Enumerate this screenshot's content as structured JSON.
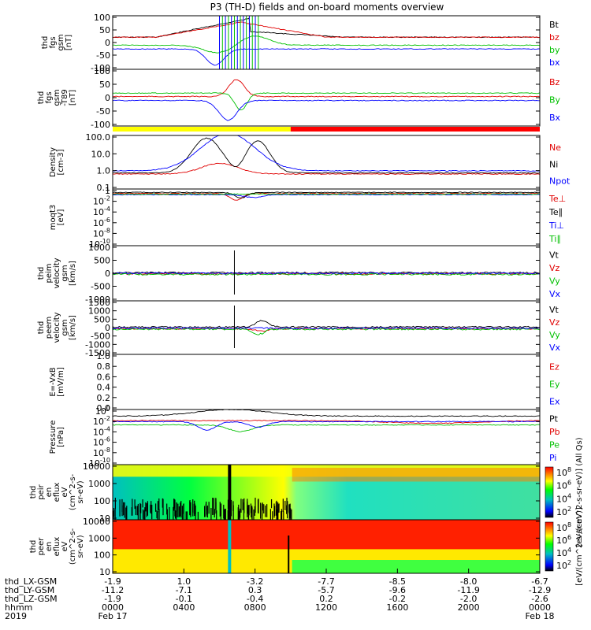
{
  "chart_data": {
    "type": "line",
    "title": "P3 (TH-D) fields and on-board moments overview",
    "panels": [
      {
        "id": "fgs",
        "ylabel": [
          "thd",
          "fgs",
          "gsm",
          "[nT]"
        ],
        "yticks": [
          "100",
          "50",
          "0",
          "-50",
          "-100"
        ],
        "ylim": [
          -100,
          100
        ],
        "scale": "linear",
        "series": [
          {
            "name": "Bt",
            "color": "#000000"
          },
          {
            "name": "bz",
            "color": "#e00000"
          },
          {
            "name": "by",
            "color": "#00c000"
          },
          {
            "name": "bx",
            "color": "#0000ff"
          }
        ]
      },
      {
        "id": "fgs-dt",
        "ylabel": [
          "thd",
          "fgs",
          "gsm",
          "-T89",
          "[nT]"
        ],
        "yticks": [
          "100",
          "50",
          "0",
          "-50",
          "-100"
        ],
        "ylim": [
          -120,
          110
        ],
        "scale": "linear",
        "series": [
          {
            "name": "Bz",
            "color": "#e00000"
          },
          {
            "name": "By",
            "color": "#00c000"
          },
          {
            "name": "Bx",
            "color": "#0000ff"
          }
        ]
      },
      {
        "id": "density",
        "ylabel": [
          "Density",
          "[cm-3]"
        ],
        "yticks": [
          "100.0",
          "10.0",
          "1.0",
          "0.1"
        ],
        "ylim": [
          0.1,
          200
        ],
        "scale": "log",
        "series": [
          {
            "name": "Ne",
            "color": "#e00000"
          },
          {
            "name": "Ni",
            "color": "#000000"
          },
          {
            "name": "Npot",
            "color": "#0000ff"
          }
        ]
      },
      {
        "id": "temperature",
        "ylabel": [
          "moqt3",
          "[eV]"
        ],
        "yticks": [
          "1",
          "10^-2",
          "10^-4",
          "10^-6",
          "10^-8",
          "10^-10"
        ],
        "ylim": [
          1e-10,
          100
        ],
        "scale": "log",
        "series": [
          {
            "name": "Te⊥",
            "color": "#e00000"
          },
          {
            "name": "Te∥",
            "color": "#000000"
          },
          {
            "name": "Ti⊥",
            "color": "#0000ff"
          },
          {
            "name": "Ti∥",
            "color": "#00c000"
          }
        ]
      },
      {
        "id": "peim-velocity",
        "ylabel": [
          "thd",
          "peim",
          "velocity",
          "gsm",
          "[km/s]"
        ],
        "yticks": [
          "1000",
          "500",
          "0",
          "-500",
          "-1000"
        ],
        "ylim": [
          -1000,
          1000
        ],
        "scale": "linear",
        "series": [
          {
            "name": "Vt",
            "color": "#000000"
          },
          {
            "name": "Vz",
            "color": "#e00000"
          },
          {
            "name": "Vy",
            "color": "#00c000"
          },
          {
            "name": "Vx",
            "color": "#0000ff"
          }
        ]
      },
      {
        "id": "peem-velocity",
        "ylabel": [
          "thd",
          "peem",
          "velocity",
          "gsm",
          "[km/s]"
        ],
        "yticks": [
          "1500",
          "1000",
          "500",
          "0",
          "-500",
          "-1000",
          "-1500"
        ],
        "ylim": [
          -1500,
          1500
        ],
        "scale": "linear",
        "series": [
          {
            "name": "Vt",
            "color": "#000000"
          },
          {
            "name": "Vz",
            "color": "#e00000"
          },
          {
            "name": "Vy",
            "color": "#00c000"
          },
          {
            "name": "Vx",
            "color": "#0000ff"
          }
        ]
      },
      {
        "id": "efield",
        "ylabel": [
          "E=-VxB",
          "[mV/m]"
        ],
        "yticks": [
          "1.0",
          "0.8",
          "0.6",
          "0.4",
          "0.2",
          "0.0"
        ],
        "ylim": [
          0,
          1
        ],
        "scale": "linear",
        "series": [
          {
            "name": "Ez",
            "color": "#e00000"
          },
          {
            "name": "Ey",
            "color": "#00c000"
          },
          {
            "name": "Ex",
            "color": "#0000ff"
          }
        ]
      },
      {
        "id": "pressure",
        "ylabel": [
          "Pressure",
          "[nPa]"
        ],
        "yticks": [
          "10^0",
          "10^-2",
          "10^-4",
          "10^-6",
          "10^-8",
          "10^-10"
        ],
        "ylim": [
          1e-10,
          10
        ],
        "scale": "log",
        "series": [
          {
            "name": "Pt",
            "color": "#000000"
          },
          {
            "name": "Pb",
            "color": "#e00000"
          },
          {
            "name": "Pe",
            "color": "#00c000"
          },
          {
            "name": "Pi",
            "color": "#0000ff"
          }
        ]
      },
      {
        "id": "peir-eflux",
        "type": "heatmap",
        "ylabel": [
          "thd",
          "peir",
          "en",
          "eflux",
          "eV",
          "(cm^2-s-",
          "sr-eV)"
        ],
        "yticks": [
          "10000",
          "1000",
          "100",
          "10"
        ],
        "ylim": [
          10,
          30000
        ],
        "scale": "log",
        "colorbar": {
          "label": "[eV/(cm^2-s-sr-eV)] (All Qs)",
          "ticks": [
            "10^8",
            "10^6",
            "10^4",
            "10^2"
          ]
        }
      },
      {
        "id": "peer-eflux",
        "type": "heatmap",
        "ylabel": [
          "thd",
          "peer",
          "en",
          "eflux",
          "eV",
          "(cm^2-s-",
          "sr-eV)"
        ],
        "yticks": [
          "10000",
          "1000",
          "100",
          "10"
        ],
        "ylim": [
          5,
          30000
        ],
        "scale": "log",
        "colorbar": {
          "label": "[eV/(cm^2-s-sr-eV)]",
          "ticks": [
            "10^8",
            "10^6",
            "10^4",
            "10^2"
          ]
        }
      }
    ],
    "mode_bar": [
      {
        "from": "0000",
        "to": "1000",
        "color": "#ffff00"
      },
      {
        "from": "1000",
        "to": "2400",
        "color": "#ff0000"
      }
    ],
    "x_axis": {
      "row_labels": [
        "thd_LX-GSM",
        "thd_LY-GSM",
        "thd_LZ-GSM",
        "hhmm",
        "2019"
      ],
      "ticks": [
        {
          "hhmm": "0000",
          "lx": "-1.9",
          "ly": "-11.2",
          "lz": "-1.9",
          "date": "Feb 17"
        },
        {
          "hhmm": "0400",
          "lx": "1.0",
          "ly": "-7.1",
          "lz": "-0.1",
          "date": ""
        },
        {
          "hhmm": "0800",
          "lx": "-3.2",
          "ly": "0.3",
          "lz": "-0.4",
          "date": ""
        },
        {
          "hhmm": "1200",
          "lx": "-7.7",
          "ly": "-5.7",
          "lz": "0.2",
          "date": ""
        },
        {
          "hhmm": "1600",
          "lx": "-8.5",
          "ly": "-9.6",
          "lz": "-0.2",
          "date": ""
        },
        {
          "hhmm": "2000",
          "lx": "-8.0",
          "ly": "-11.9",
          "lz": "-2.0",
          "date": ""
        },
        {
          "hhmm": "0000",
          "lx": "-6.7",
          "ly": "-12.9",
          "lz": "-2.6",
          "date": "Feb 18"
        }
      ]
    },
    "colorbar_colors": [
      "#ffffff",
      "#ff0000",
      "#ff8000",
      "#ffff00",
      "#00ff00",
      "#00c0c0",
      "#0000ff",
      "#000000"
    ]
  }
}
